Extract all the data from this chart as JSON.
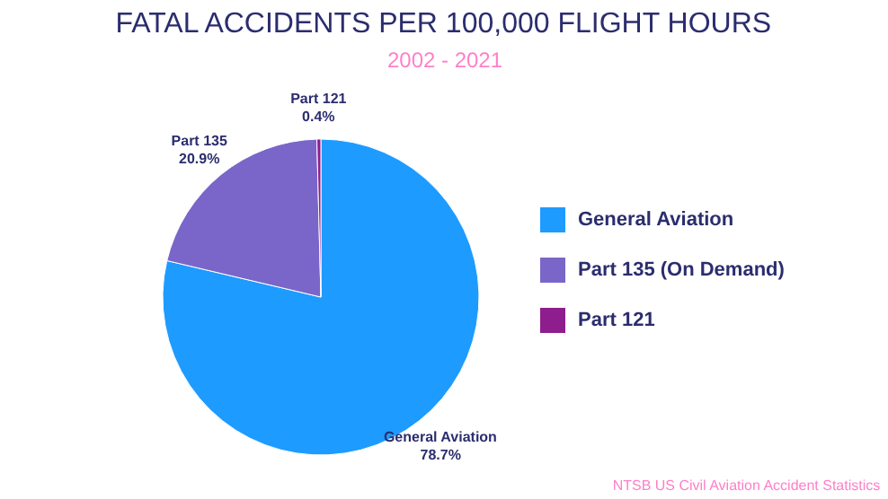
{
  "chart_data": {
    "type": "pie",
    "title": "FATAL ACCIDENTS PER 100,000 FLIGHT HOURS",
    "subtitle": "2002 - 2021",
    "categories": [
      "General Aviation",
      "Part 135 (On Demand)",
      "Part 121"
    ],
    "values": [
      78.7,
      20.9,
      0.4
    ],
    "colors": [
      "#1e9bff",
      "#7a66c9",
      "#8e1d8e"
    ],
    "value_labels": [
      "General Aviation\n78.7%",
      "Part 135\n20.9%",
      "Part 121\n0.4%"
    ],
    "legend": "right",
    "annotations": [
      "NTSB US Civil Aviation Accident Statistics"
    ]
  }
}
